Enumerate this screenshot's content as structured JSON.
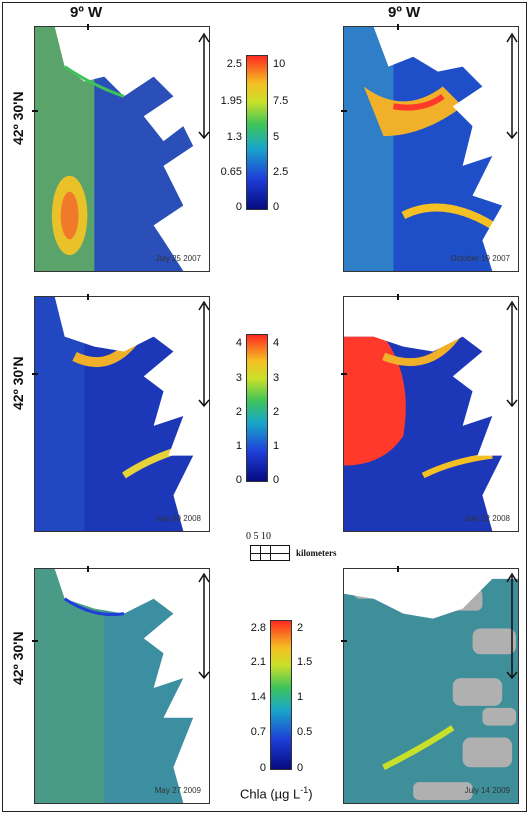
{
  "lon_label": "9º W",
  "lat_label": "42º 30'N",
  "dates": {
    "p1": "July 25 2007",
    "p2": "October 19 2007",
    "p3": "July 09 2008",
    "p4": "July 22 2008",
    "p5": "May 27 2009",
    "p6": "July 14 2009"
  },
  "colorbar1": {
    "left": [
      "2.5",
      "1.95",
      "1.3",
      "0.65",
      "0"
    ],
    "right": [
      "10",
      "7.5",
      "5",
      "2.5",
      "0"
    ]
  },
  "colorbar2": {
    "left": [
      "4",
      "3",
      "2",
      "1",
      "0"
    ],
    "right": [
      "4",
      "3",
      "2",
      "1",
      "0"
    ]
  },
  "colorbar3": {
    "left": [
      "2.8",
      "2.1",
      "1.4",
      "0.7",
      "0"
    ],
    "right": [
      "2",
      "1.5",
      "1",
      "0.5",
      "0"
    ]
  },
  "scalebar": {
    "ticks": "0   5   10",
    "unit": "kilometers"
  },
  "units": "Chla (µg L",
  "units_sup": "-1",
  "units_close": ")",
  "colors": {
    "high": "#ff3a2a",
    "mid": "#f5e52a",
    "green": "#3ec35a",
    "low": "#0a1e9a"
  }
}
